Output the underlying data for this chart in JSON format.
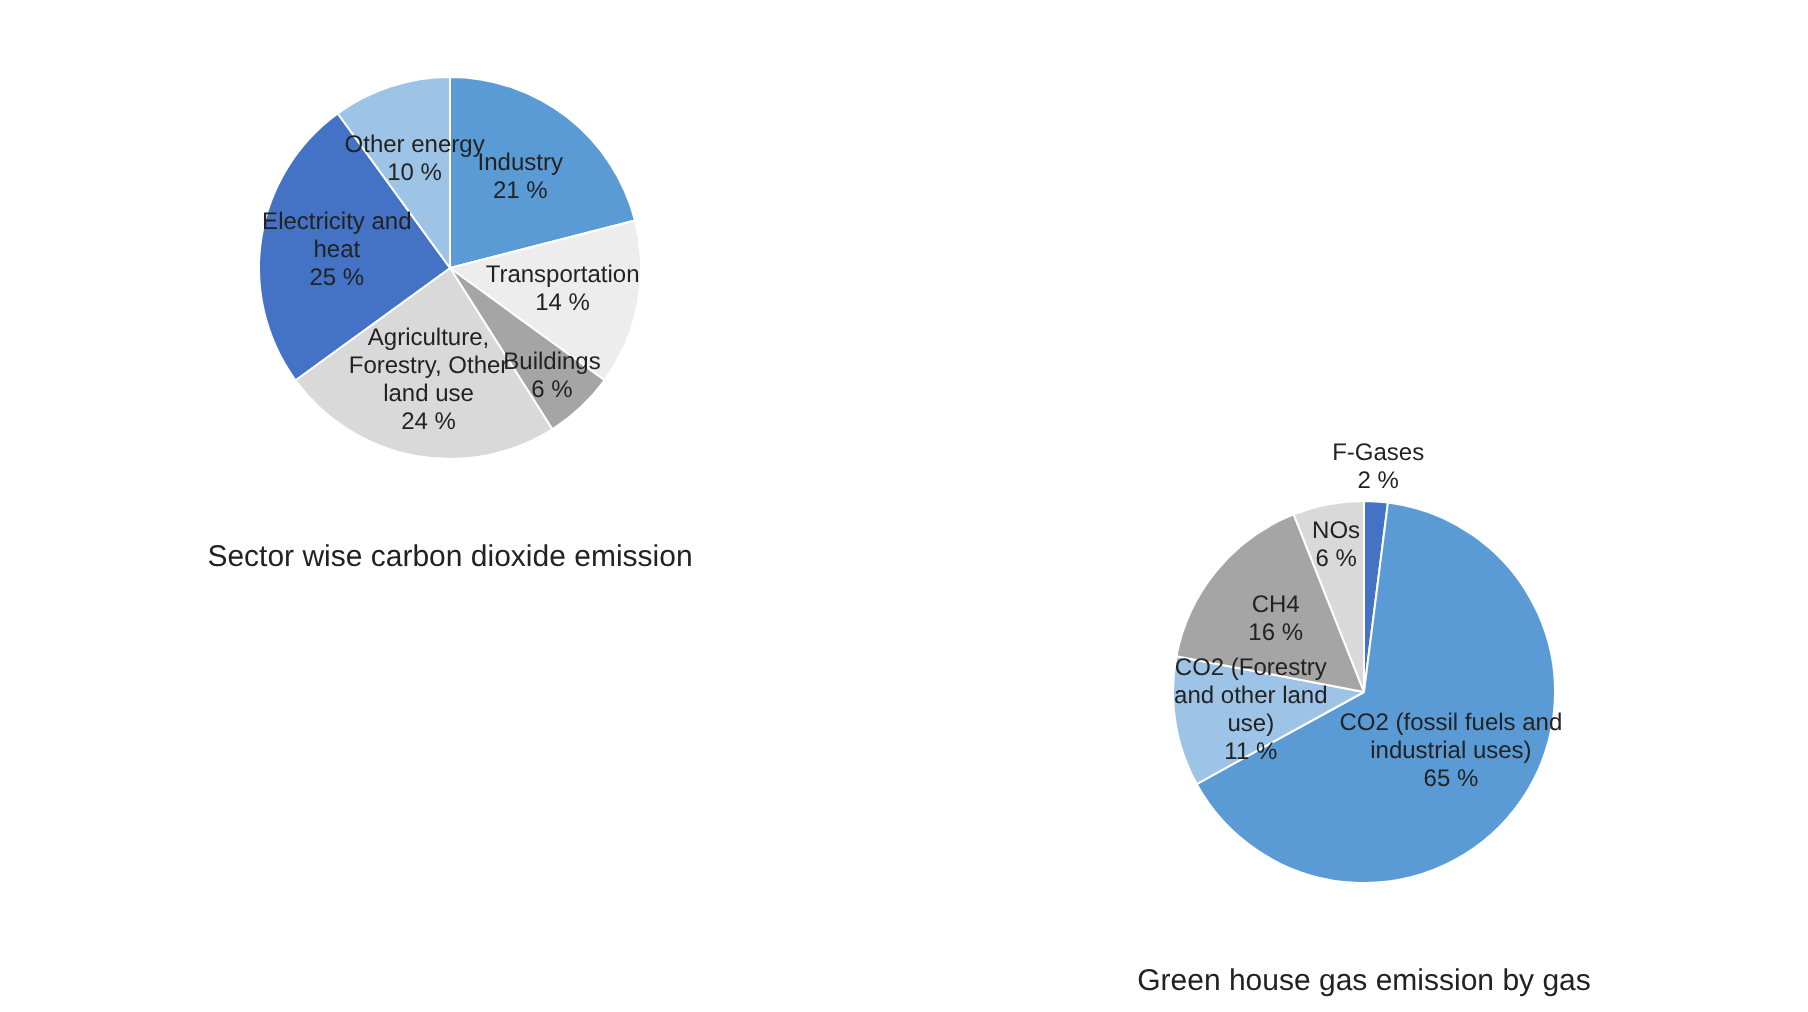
{
  "chart_data": [
    {
      "type": "pie",
      "title": "Sector wise carbon dioxide emission",
      "categories": [
        "Industry",
        "Transportation",
        "Buildings",
        "Agriculture, Forestry, Other land use",
        "Electricity and heat",
        "Other energy"
      ],
      "values": [
        21,
        14,
        6,
        24,
        25,
        10
      ],
      "value_labels": [
        "21 %",
        "14 %",
        "6 %",
        "24 %",
        "25 %",
        "10 %"
      ],
      "colors": [
        "#5b9bd5",
        "#ededed",
        "#a5a5a5",
        "#d9d9d9",
        "#4472c4",
        "#9dc3e6"
      ],
      "legend": false
    },
    {
      "type": "pie",
      "title": "Green house gas emission by gas",
      "categories": [
        "F-Gases",
        "CO2 (fossil fuels and industrial uses)",
        "CO2 (Forestry and other land use)",
        "CH4",
        "NOs"
      ],
      "values": [
        2,
        65,
        11,
        16,
        6
      ],
      "value_labels": [
        "2 %",
        "65 %",
        "11 %",
        "16 %",
        "6 %"
      ],
      "colors": [
        "#4472c4",
        "#5b9bd5",
        "#9dc3e6",
        "#a5a5a5",
        "#d9d9d9"
      ],
      "legend": false
    }
  ]
}
